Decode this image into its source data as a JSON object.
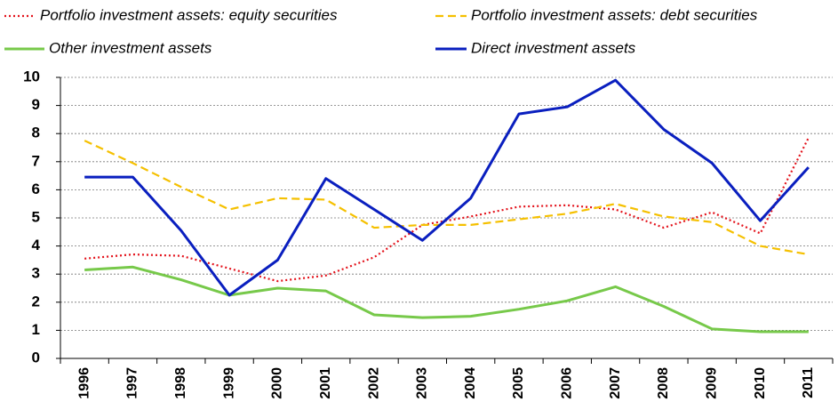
{
  "chart_data": {
    "type": "line",
    "categories": [
      "1996",
      "1997",
      "1998",
      "1999",
      "2000",
      "2001",
      "2002",
      "2003",
      "2004",
      "2005",
      "2006",
      "2007",
      "2008",
      "2009",
      "2010",
      "2011"
    ],
    "series": [
      {
        "name": "Portfolio investment assets: equity securities",
        "color": "#e3121b",
        "style": "dotted",
        "values": [
          3.55,
          3.7,
          3.65,
          3.2,
          2.75,
          2.95,
          3.6,
          4.75,
          5.05,
          5.4,
          5.45,
          5.3,
          4.65,
          5.2,
          4.45,
          7.85
        ]
      },
      {
        "name": "Portfolio investment assets: debt securities",
        "color": "#f5c000",
        "style": "dashed",
        "values": [
          7.75,
          6.95,
          6.1,
          5.3,
          5.7,
          5.65,
          4.65,
          4.75,
          4.75,
          4.95,
          5.15,
          5.5,
          5.05,
          4.85,
          4.0,
          3.7
        ]
      },
      {
        "name": "Other investment assets",
        "color": "#77c94a",
        "style": "solid",
        "values": [
          3.15,
          3.25,
          2.8,
          2.25,
          2.5,
          2.4,
          1.55,
          1.45,
          1.5,
          1.75,
          2.05,
          2.55,
          1.85,
          1.05,
          0.95,
          0.95
        ]
      },
      {
        "name": "Direct investment assets",
        "color": "#0a1fbf",
        "style": "solid",
        "values": [
          6.45,
          6.45,
          4.55,
          2.25,
          3.5,
          6.4,
          5.3,
          4.2,
          5.7,
          8.7,
          8.95,
          9.9,
          8.15,
          6.95,
          4.9,
          6.8
        ]
      }
    ],
    "ylim": [
      0,
      10
    ],
    "yticks": [
      0,
      1,
      2,
      3,
      4,
      5,
      6,
      7,
      8,
      9,
      10
    ],
    "grid": true
  }
}
